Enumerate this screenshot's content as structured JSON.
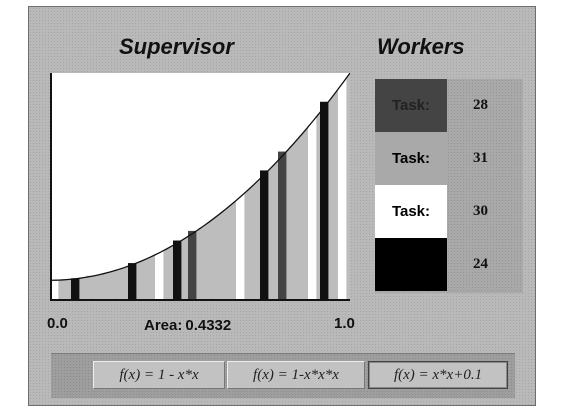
{
  "supervisor": {
    "title": "Supervisor"
  },
  "workers_panel": {
    "title": "Workers",
    "workers": [
      {
        "label": "Task:",
        "count": "28",
        "color": "#444444",
        "text_color": "#222222"
      },
      {
        "label": "Task:",
        "count": "31",
        "color": "#a9a9a9",
        "text_color": "#000000"
      },
      {
        "label": "Task:",
        "count": "30",
        "color": "#ffffff",
        "text_color": "#000000"
      },
      {
        "label": "",
        "count": "24",
        "color": "#000000",
        "text_color": "#ffffff"
      }
    ]
  },
  "plot": {
    "x_start_label": "0.0",
    "x_end_label": "1.0",
    "area_label": "Area:",
    "area_value": "0.4332",
    "function": "x*x+0.1",
    "xlim": [
      0,
      1
    ],
    "ylim": [
      0,
      1.1
    ],
    "colors": {
      "background": "#ffffff",
      "fill": "#bdbdbd",
      "dark": "#444444",
      "black": "#111111"
    }
  },
  "chart_data": {
    "type": "area",
    "xlim": [
      0,
      1
    ],
    "ylim": [
      0,
      1.1
    ],
    "curve": "x*x+0.1",
    "strips": [
      {
        "x": 0.0,
        "color": "white"
      },
      {
        "x": 0.07,
        "color": "black"
      },
      {
        "x": 0.12,
        "color": "gray"
      },
      {
        "x": 0.26,
        "color": "black"
      },
      {
        "x": 0.35,
        "color": "white"
      },
      {
        "x": 0.41,
        "color": "black"
      },
      {
        "x": 0.46,
        "color": "dark"
      },
      {
        "x": 0.62,
        "color": "white"
      },
      {
        "x": 0.7,
        "color": "black"
      },
      {
        "x": 0.76,
        "color": "dark"
      },
      {
        "x": 0.86,
        "color": "white"
      },
      {
        "x": 0.9,
        "color": "black"
      },
      {
        "x": 0.96,
        "color": "white"
      }
    ],
    "area": 0.4332
  },
  "buttons": [
    {
      "label": "f(x) = 1 - x*x"
    },
    {
      "label": "f(x) = 1-x*x*x"
    },
    {
      "label": "f(x) = x*x+0.1"
    }
  ]
}
